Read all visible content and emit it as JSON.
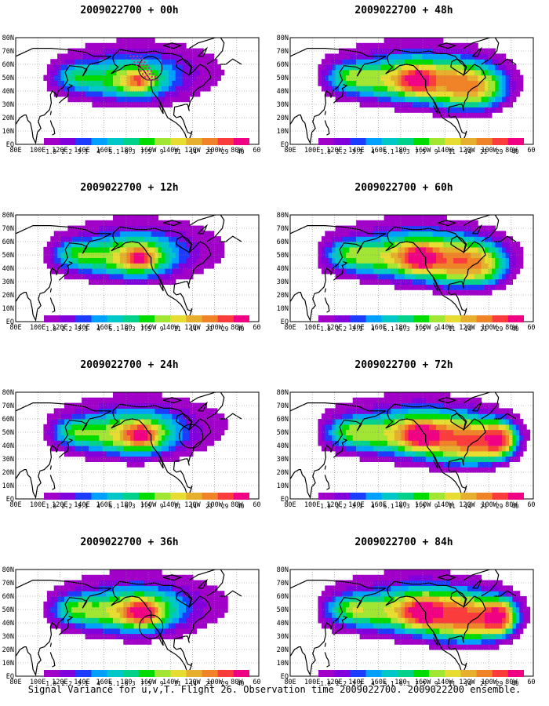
{
  "lat_labels": [
    "80N",
    "70N",
    "60N",
    "50N",
    "40N",
    "30N",
    "20N",
    "10N",
    "EQ"
  ],
  "lon_labels": [
    "80E",
    "100E",
    "120E",
    "140E",
    "160E",
    "180",
    "160W",
    "140W",
    "120W",
    "100W",
    "80W",
    "60W"
  ],
  "colorbar": {
    "levels": [
      "1.8",
      "2.2",
      "3.1",
      "4",
      "5.1",
      "6.3",
      "7.5",
      "9",
      "11",
      "14",
      "21",
      "29",
      "40"
    ],
    "colors": [
      "#a000c8",
      "#8200dc",
      "#1e3cff",
      "#00a0ff",
      "#00c8c8",
      "#00d28c",
      "#00dc00",
      "#a0e632",
      "#e6dc32",
      "#e6af2d",
      "#f08228",
      "#fa3c3c",
      "#f00082"
    ]
  },
  "panels": [
    {
      "id": "p00",
      "title": "2009022700 + 00h",
      "col": 0,
      "row": 0,
      "intensity": 0.35,
      "shift": 0,
      "circle": true,
      "circle_lon": 235,
      "circle_lat": 57,
      "track": true
    },
    {
      "id": "p12",
      "title": "2009022700 + 12h",
      "col": 0,
      "row": 1,
      "intensity": 0.55,
      "shift": 5,
      "circle": false,
      "track": false
    },
    {
      "id": "p24",
      "title": "2009022700 + 24h",
      "col": 0,
      "row": 2,
      "intensity": 0.65,
      "shift": 10,
      "circle": true,
      "circle_lon": 282,
      "circle_lat": 47,
      "track": false
    },
    {
      "id": "p36",
      "title": "2009022700 + 36h",
      "col": 0,
      "row": 3,
      "intensity": 0.75,
      "shift": 15,
      "circle": true,
      "circle_lon": 236,
      "circle_lat": 37,
      "track": false
    },
    {
      "id": "p48",
      "title": "2009022700 + 48h",
      "col": 1,
      "row": 0,
      "intensity": 0.8,
      "shift": 20,
      "circle": false,
      "track": false
    },
    {
      "id": "p60",
      "title": "2009022700 + 60h",
      "col": 1,
      "row": 1,
      "intensity": 0.85,
      "shift": 28,
      "circle": false,
      "track": false
    },
    {
      "id": "p72",
      "title": "2009022700 + 72h",
      "col": 1,
      "row": 2,
      "intensity": 0.9,
      "shift": 36,
      "circle": false,
      "track": false
    },
    {
      "id": "p84",
      "title": "2009022700 + 84h",
      "col": 1,
      "row": 3,
      "intensity": 0.95,
      "shift": 44,
      "circle": false,
      "track": false
    }
  ],
  "footer": "Signal Variance for u,v,T. Flight 26. Observation time 2009022700. 2009022200 ensemble."
}
